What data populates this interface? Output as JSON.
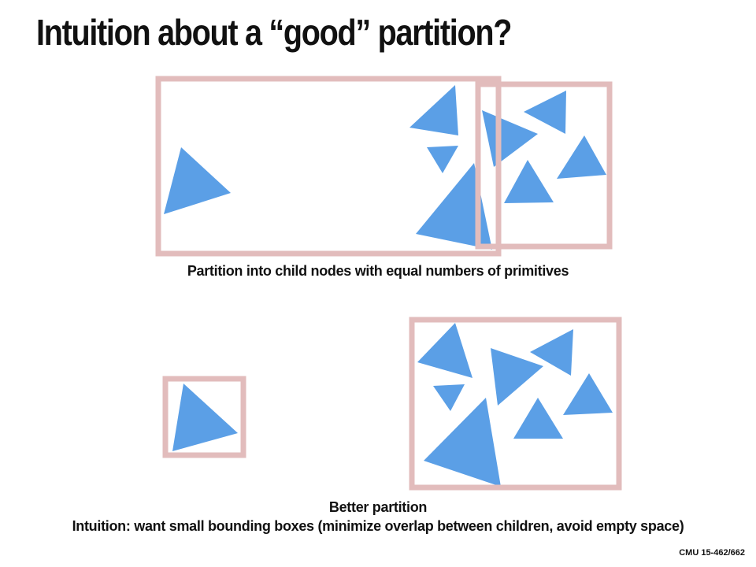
{
  "slide": {
    "title": "Intuition about a “good” partition?",
    "caption_top": "Partition into child nodes with equal numbers of primitives",
    "caption_bottom_heading": "Better partition",
    "caption_bottom_text": "Intuition: want small bounding boxes (minimize overlap between children, avoid empty space)",
    "footer": "CMU 15-462/662"
  },
  "colors": {
    "triangle_fill": "#5b9fe6",
    "box_stroke": "#e2bcbc",
    "background": "#ffffff",
    "text": "#111111"
  }
}
